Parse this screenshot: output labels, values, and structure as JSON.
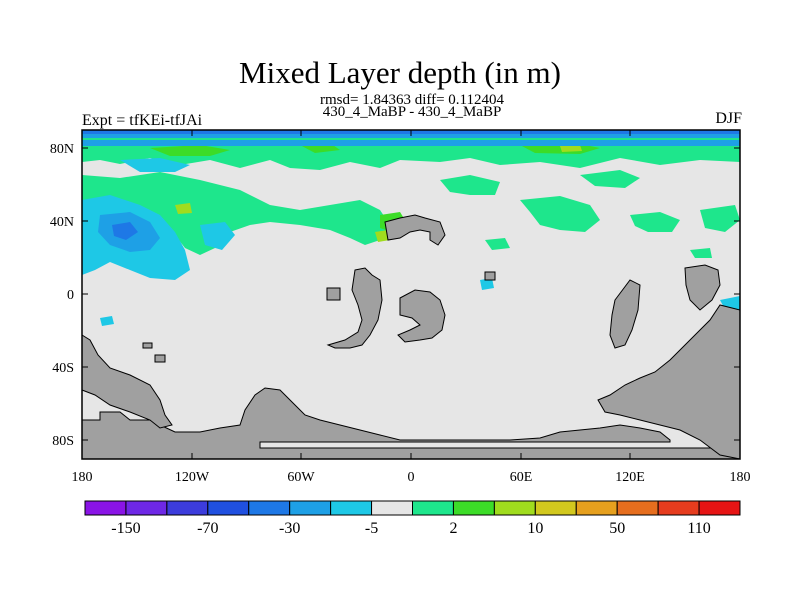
{
  "title": "Mixed Layer depth (in m)",
  "subtitle_rmsd": "rmsd= 1.84363 diff= 0.112404",
  "subtitle_exp": "430_4_MaBP - 430_4_MaBP",
  "left_label": "Expt = tfKEi-tfJAi",
  "right_label": "DJF",
  "map": {
    "projection": "cylindrical equidistant",
    "lon_range": [
      -180,
      180
    ],
    "lat_range": [
      -90,
      90
    ],
    "background_color": "#e6e6e6",
    "land_color": "#a0a0a0"
  },
  "y_ticks": [
    "80N",
    "40N",
    "0",
    "40S",
    "80S"
  ],
  "x_ticks": [
    "180",
    "120W",
    "60W",
    "0",
    "60E",
    "120E",
    "180"
  ],
  "colorbar": {
    "colors": [
      "#8a14e6",
      "#6e28e6",
      "#3c3cdc",
      "#2050e0",
      "#1e78e6",
      "#1ea0e6",
      "#1ec8e6",
      "#e6e6e6",
      "#1ee68c",
      "#3cdc28",
      "#a0dc1e",
      "#d2c81e",
      "#e6a01e",
      "#e66e1e",
      "#e63c1e",
      "#e61414"
    ],
    "labels": [
      "-150",
      "-70",
      "-30",
      "-5",
      "2",
      "10",
      "50",
      "110"
    ]
  }
}
